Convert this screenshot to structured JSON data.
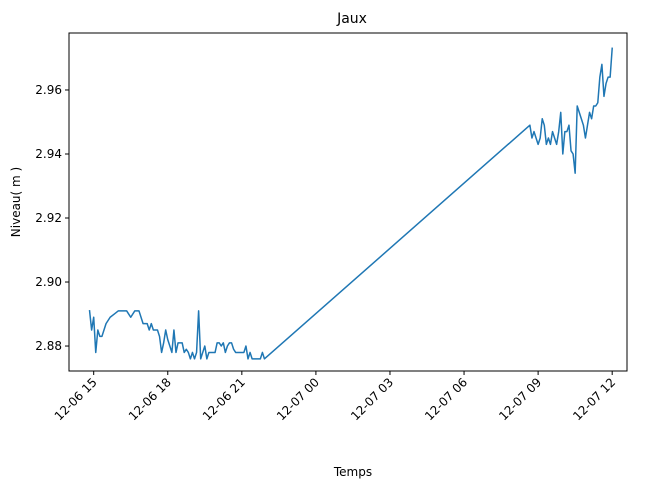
{
  "chart_data": {
    "type": "line",
    "title": "Jaux",
    "xlabel": "Temps",
    "ylabel": "Niveau( m )",
    "x_ticks": [
      "12-06 15",
      "12-06 18",
      "12-06 21",
      "12-07 00",
      "12-07 03",
      "12-07 06",
      "12-07 09",
      "12-07 12"
    ],
    "y_ticks": [
      "2.88",
      "2.90",
      "2.92",
      "2.94",
      "2.96"
    ],
    "xlim": [
      "2023-12-06 14:00",
      "2023-12-07 12:36"
    ],
    "ylim": [
      2.8722,
      2.9778
    ],
    "grid": false,
    "series": [
      {
        "color": "#1f77b4",
        "x": [
          "2023-12-06 14:50",
          "2023-12-06 14:55",
          "2023-12-06 15:00",
          "2023-12-06 15:05",
          "2023-12-06 15:10",
          "2023-12-06 15:15",
          "2023-12-06 15:20",
          "2023-12-06 15:25",
          "2023-12-06 15:30",
          "2023-12-06 15:40",
          "2023-12-06 15:50",
          "2023-12-06 16:00",
          "2023-12-06 16:10",
          "2023-12-06 16:20",
          "2023-12-06 16:30",
          "2023-12-06 16:40",
          "2023-12-06 16:50",
          "2023-12-06 17:00",
          "2023-12-06 17:05",
          "2023-12-06 17:10",
          "2023-12-06 17:15",
          "2023-12-06 17:20",
          "2023-12-06 17:25",
          "2023-12-06 17:30",
          "2023-12-06 17:35",
          "2023-12-06 17:40",
          "2023-12-06 17:45",
          "2023-12-06 17:50",
          "2023-12-06 17:55",
          "2023-12-06 18:00",
          "2023-12-06 18:05",
          "2023-12-06 18:10",
          "2023-12-06 18:15",
          "2023-12-06 18:20",
          "2023-12-06 18:25",
          "2023-12-06 18:30",
          "2023-12-06 18:35",
          "2023-12-06 18:40",
          "2023-12-06 18:45",
          "2023-12-06 18:50",
          "2023-12-06 18:55",
          "2023-12-06 19:00",
          "2023-12-06 19:05",
          "2023-12-06 19:10",
          "2023-12-06 19:15",
          "2023-12-06 19:20",
          "2023-12-06 19:25",
          "2023-12-06 19:30",
          "2023-12-06 19:35",
          "2023-12-06 19:40",
          "2023-12-06 19:45",
          "2023-12-06 19:50",
          "2023-12-06 19:55",
          "2023-12-06 20:00",
          "2023-12-06 20:05",
          "2023-12-06 20:10",
          "2023-12-06 20:15",
          "2023-12-06 20:20",
          "2023-12-06 20:25",
          "2023-12-06 20:30",
          "2023-12-06 20:35",
          "2023-12-06 20:40",
          "2023-12-06 20:45",
          "2023-12-06 20:50",
          "2023-12-06 20:55",
          "2023-12-06 21:00",
          "2023-12-06 21:05",
          "2023-12-06 21:10",
          "2023-12-06 21:15",
          "2023-12-06 21:20",
          "2023-12-06 21:25",
          "2023-12-06 21:30",
          "2023-12-06 21:35",
          "2023-12-06 21:40",
          "2023-12-06 21:45",
          "2023-12-06 21:50",
          "2023-12-06 21:55",
          "2023-12-07 08:40",
          "2023-12-07 08:45",
          "2023-12-07 08:50",
          "2023-12-07 08:55",
          "2023-12-07 09:00",
          "2023-12-07 09:05",
          "2023-12-07 09:10",
          "2023-12-07 09:15",
          "2023-12-07 09:20",
          "2023-12-07 09:25",
          "2023-12-07 09:30",
          "2023-12-07 09:35",
          "2023-12-07 09:40",
          "2023-12-07 09:45",
          "2023-12-07 09:50",
          "2023-12-07 09:55",
          "2023-12-07 10:00",
          "2023-12-07 10:05",
          "2023-12-07 10:10",
          "2023-12-07 10:15",
          "2023-12-07 10:20",
          "2023-12-07 10:25",
          "2023-12-07 10:30",
          "2023-12-07 10:35",
          "2023-12-07 10:40",
          "2023-12-07 10:45",
          "2023-12-07 10:50",
          "2023-12-07 10:55",
          "2023-12-07 11:00",
          "2023-12-07 11:05",
          "2023-12-07 11:10",
          "2023-12-07 11:15",
          "2023-12-07 11:20",
          "2023-12-07 11:25",
          "2023-12-07 11:30",
          "2023-12-07 11:35",
          "2023-12-07 11:40",
          "2023-12-07 11:45",
          "2023-12-07 11:50",
          "2023-12-07 11:55",
          "2023-12-07 12:00"
        ],
        "y": [
          2.891,
          2.885,
          2.889,
          2.878,
          2.885,
          2.883,
          2.883,
          2.885,
          2.887,
          2.889,
          2.89,
          2.891,
          2.891,
          2.891,
          2.889,
          2.891,
          2.891,
          2.887,
          2.887,
          2.887,
          2.885,
          2.887,
          2.885,
          2.885,
          2.885,
          2.883,
          2.878,
          2.881,
          2.885,
          2.882,
          2.88,
          2.878,
          2.885,
          2.878,
          2.881,
          2.881,
          2.881,
          2.878,
          2.879,
          2.878,
          2.876,
          2.878,
          2.876,
          2.878,
          2.891,
          2.876,
          2.878,
          2.88,
          2.876,
          2.878,
          2.878,
          2.878,
          2.878,
          2.881,
          2.881,
          2.88,
          2.881,
          2.878,
          2.88,
          2.881,
          2.881,
          2.879,
          2.878,
          2.878,
          2.878,
          2.878,
          2.878,
          2.88,
          2.876,
          2.878,
          2.876,
          2.876,
          2.876,
          2.876,
          2.876,
          2.878,
          2.876,
          2.949,
          2.945,
          2.947,
          2.945,
          2.943,
          2.945,
          2.951,
          2.949,
          2.943,
          2.945,
          2.943,
          2.947,
          2.945,
          2.943,
          2.947,
          2.953,
          2.94,
          2.947,
          2.947,
          2.949,
          2.941,
          2.94,
          2.934,
          2.955,
          2.953,
          2.951,
          2.949,
          2.945,
          2.949,
          2.953,
          2.951,
          2.955,
          2.955,
          2.956,
          2.964,
          2.968,
          2.958,
          2.962,
          2.964,
          2.964,
          2.973
        ]
      }
    ]
  }
}
